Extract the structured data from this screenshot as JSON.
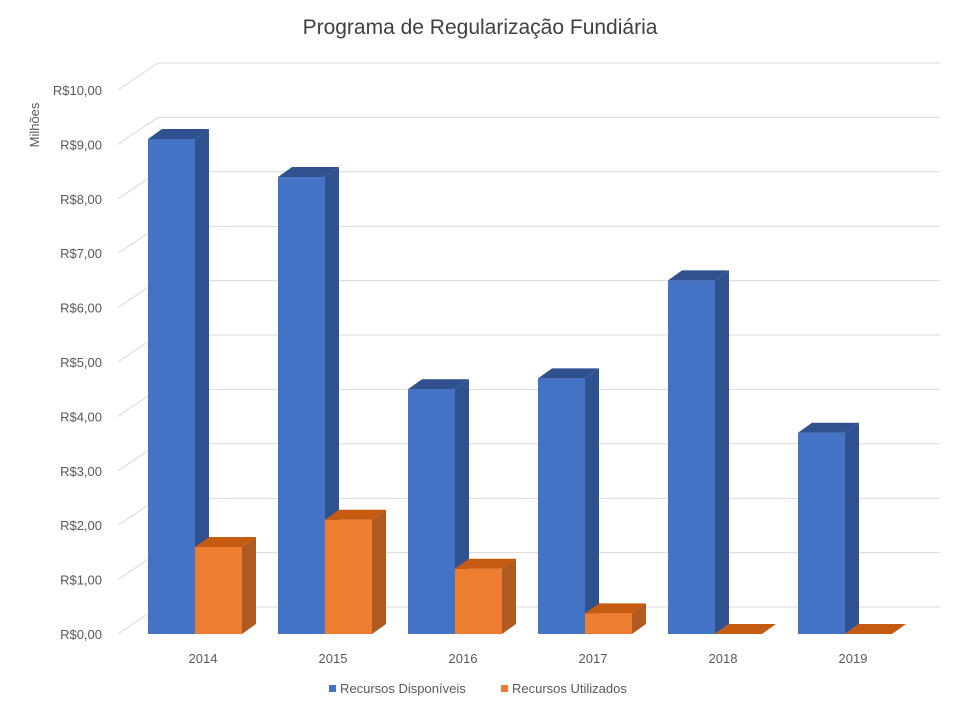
{
  "chart_data": {
    "type": "bar",
    "title": "Programa de Regularização Fundiária",
    "ylabel": "Milhões",
    "xlabel": "",
    "categories": [
      "2014",
      "2015",
      "2016",
      "2017",
      "2018",
      "2019"
    ],
    "series": [
      {
        "name": "Recursos Disponíveis",
        "values": [
          9.1,
          8.4,
          4.5,
          4.7,
          6.5,
          3.7
        ],
        "color": "#4472C4",
        "side_color": "#2F528F",
        "top_color": "#2F528F"
      },
      {
        "name": "Recursos Utilizados",
        "values": [
          1.6,
          2.1,
          1.2,
          0.38,
          0.0,
          0.0
        ],
        "color": "#ED7D31",
        "side_color": "#AE5A21",
        "top_color": "#C55A11"
      }
    ],
    "ylim": [
      0,
      10
    ],
    "yticks": [
      "R$0,00",
      "R$1,00",
      "R$2,00",
      "R$3,00",
      "R$4,00",
      "R$5,00",
      "R$6,00",
      "R$7,00",
      "R$8,00",
      "R$9,00",
      "R$10,00"
    ],
    "grid": true,
    "legend_position": "bottom"
  }
}
